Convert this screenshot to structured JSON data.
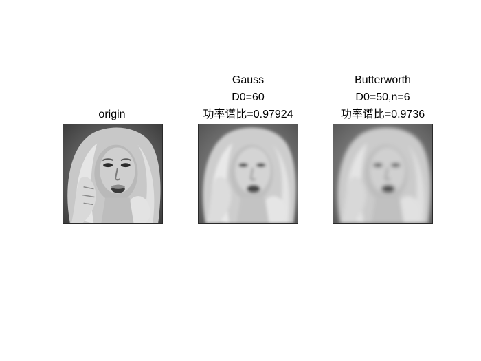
{
  "panels": [
    {
      "id": "origin",
      "title_lines": [
        "origin"
      ],
      "blur": 0
    },
    {
      "id": "gauss",
      "title_lines": [
        "Gauss",
        "D0=60",
        "功率谱比=0.97924"
      ],
      "blur": 2.2
    },
    {
      "id": "butterworth",
      "title_lines": [
        "Butterworth",
        "D0=50,n=6",
        "功率谱比=0.9736"
      ],
      "blur": 3.0
    }
  ],
  "image_subject": "grayscale-face-portrait"
}
